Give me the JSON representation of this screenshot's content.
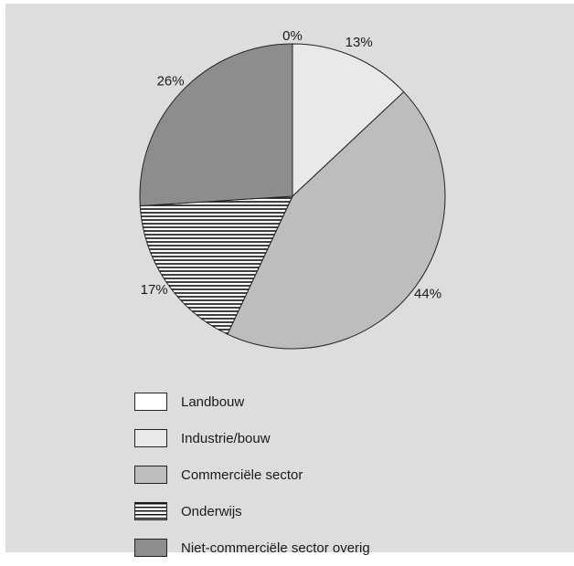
{
  "chart_data": {
    "type": "pie",
    "categories": [
      "Landbouw",
      "Industrie/bouw",
      "Commerciële sector",
      "Onderwijs",
      "Niet-commerciële sector overig"
    ],
    "values": [
      0,
      13,
      44,
      17,
      26
    ],
    "data_labels": [
      "0%",
      "13%",
      "44%",
      "17%",
      "26%"
    ],
    "colors": [
      "#ffffff",
      "#e8e9ea",
      "#bcbdbf",
      "hatched",
      "#8c8d8f"
    ],
    "legend_position": "bottom",
    "title": "",
    "start_angle": "12 o'clock, clockwise"
  }
}
